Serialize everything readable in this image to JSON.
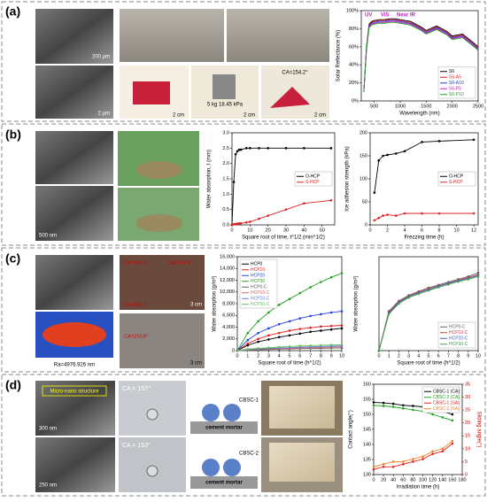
{
  "panels": [
    {
      "label": "(a)",
      "texts": [
        "200 μm",
        "2 μm",
        "2 cm",
        "2 cm",
        "2 cm",
        "5 kg 18.45 kPa",
        "CA=154.2°"
      ]
    },
    {
      "label": "(b)",
      "texts": [
        "500 nm"
      ]
    },
    {
      "label": "(c)",
      "texts": [
        "Ra=4976.926 nm",
        "3 cm",
        "3 cm",
        "CA=154.3°",
        "CA=153.8°",
        "CA=152.1°",
        "CA=151.6°"
      ]
    },
    {
      "label": "(d)",
      "texts": [
        "Micro-nano structure",
        "300 nm",
        "250 nm",
        "CA = 157°",
        "CA = 153°",
        "CBSC-1",
        "cement mortar",
        "CBSC-2",
        "cement mortar"
      ]
    }
  ],
  "chart_data": [
    {
      "type": "line",
      "xlabel": "Wavelength (nm)",
      "ylabel": "Solar Reflectance (%)",
      "annotations": [
        "UV",
        "VIS",
        "Near IR"
      ],
      "x": [
        300,
        350,
        400,
        450,
        500,
        600,
        700,
        800,
        900,
        1000,
        1200,
        1400,
        1500,
        1700,
        1900,
        2000,
        2200,
        2400,
        2500
      ],
      "xlim": [
        250,
        2500
      ],
      "xticks": [
        500,
        1000,
        1500,
        2000,
        2500
      ],
      "ylim": [
        0,
        100
      ],
      "yticks": [
        {
          "value": 0,
          "label": "0%"
        },
        {
          "value": 20,
          "label": "20%"
        },
        {
          "value": 40,
          "label": "40%"
        },
        {
          "value": 60,
          "label": "60%"
        },
        {
          "value": 80,
          "label": "80%"
        },
        {
          "value": 100,
          "label": "100%"
        }
      ],
      "markers": false,
      "legend": "lower right",
      "series": [
        {
          "name": "S6",
          "color": "#000000",
          "values": [
            10,
            60,
            85,
            88,
            89,
            90,
            90,
            91,
            91,
            90,
            88,
            82,
            78,
            83,
            77,
            72,
            74,
            65,
            60
          ]
        },
        {
          "name": "S6-A5",
          "color": "#e02020",
          "values": [
            10,
            59,
            84,
            87,
            88,
            89,
            89,
            90,
            90,
            89,
            87,
            81,
            77,
            82,
            76,
            71,
            73,
            64,
            59
          ]
        },
        {
          "name": "S6-A10",
          "color": "#2040e0",
          "values": [
            10,
            58,
            83,
            86,
            87,
            88,
            88,
            89,
            89,
            88,
            86,
            80,
            76,
            81,
            75,
            70,
            72,
            63,
            58
          ]
        },
        {
          "name": "S6-P5",
          "color": "#d020d0",
          "values": [
            10,
            57,
            82,
            85,
            86,
            87,
            87,
            88,
            88,
            87,
            85,
            79,
            75,
            80,
            74,
            69,
            71,
            62,
            57
          ]
        },
        {
          "name": "S6-P10",
          "color": "#20a020",
          "values": [
            10,
            56,
            81,
            84,
            85,
            86,
            86,
            87,
            87,
            86,
            84,
            78,
            74,
            79,
            73,
            68,
            70,
            61,
            56
          ]
        }
      ]
    },
    {
      "type": "line",
      "xlabel": "Square root of time, t^1/2 (min^1/2)",
      "ylabel": "Water absorption, I (mm)",
      "xlim": [
        0,
        57
      ],
      "xticks": [
        0,
        10,
        20,
        30,
        40,
        50
      ],
      "ylim": [
        0,
        3
      ],
      "yticks": [
        {
          "value": 0,
          "label": "0.0"
        },
        0.5,
        {
          "value": 1,
          "label": "1.0"
        },
        1.5,
        {
          "value": 2,
          "label": "2.0"
        },
        2.5,
        {
          "value": 3,
          "label": "3.0"
        }
      ],
      "markers": true,
      "legend": "center right",
      "series": [
        {
          "name": "O-HCP",
          "color": "#000000",
          "x": [
            0,
            1,
            2,
            3,
            4,
            5,
            8,
            10,
            15,
            20,
            30,
            40,
            55
          ],
          "values": [
            0,
            1.4,
            2.3,
            2.4,
            2.45,
            2.45,
            2.5,
            2.5,
            2.5,
            2.5,
            2.5,
            2.5,
            2.5
          ]
        },
        {
          "name": "S-HCP",
          "color": "#e02020",
          "x": [
            0,
            1,
            2,
            3,
            4,
            5,
            8,
            10,
            15,
            20,
            30,
            40,
            55
          ],
          "values": [
            0,
            0.02,
            0.03,
            0.04,
            0.05,
            0.05,
            0.08,
            0.1,
            0.2,
            0.3,
            0.5,
            0.7,
            0.8
          ]
        }
      ]
    },
    {
      "type": "line",
      "xlabel": "Frezzing time (h)",
      "ylabel": "Ice adhesion strength (kPa)",
      "xlim": [
        0,
        12.5
      ],
      "xticks": [
        0,
        2,
        4,
        6,
        8,
        10,
        12
      ],
      "ylim": [
        0,
        200
      ],
      "yticks": [
        0,
        50,
        100,
        150,
        200
      ],
      "markers": true,
      "legend": "center right",
      "series": [
        {
          "name": "O-HCP",
          "color": "#000000",
          "x": [
            0.5,
            1,
            1.5,
            2,
            3,
            4,
            6,
            8,
            12
          ],
          "values": [
            70,
            140,
            150,
            152,
            155,
            160,
            180,
            182,
            185
          ]
        },
        {
          "name": "S-HCP",
          "color": "#e02020",
          "x": [
            0.5,
            1,
            1.5,
            2,
            3,
            4,
            6,
            8,
            12
          ],
          "values": [
            10,
            15,
            20,
            22,
            20,
            25,
            25,
            25,
            25
          ]
        }
      ]
    },
    {
      "type": "line",
      "xlabel": "Square root of time (h^1/2)",
      "ylabel": "Water absorption (g/m²)",
      "x": [
        0,
        1,
        2,
        3,
        4,
        5,
        6,
        7,
        8,
        9,
        10
      ],
      "xlim": [
        0,
        10
      ],
      "xticks": [
        0,
        1,
        2,
        3,
        4,
        5,
        6,
        7,
        8,
        9,
        10
      ],
      "ylim": [
        0,
        16000
      ],
      "yticks": [
        0,
        {
          "value": 2000,
          "label": "2,000"
        },
        {
          "value": 4000,
          "label": "4,000"
        },
        {
          "value": 6000,
          "label": "6,000"
        },
        {
          "value": 8000,
          "label": "8,000"
        },
        {
          "value": 10000,
          "label": "10,000"
        },
        {
          "value": 12000,
          "label": "12,000"
        },
        {
          "value": 14000,
          "label": "14,000"
        },
        {
          "value": 16000,
          "label": "16,000"
        }
      ],
      "markers": true,
      "legend": "upper left",
      "series": [
        {
          "name": "HCP0",
          "color": "#000000",
          "values": [
            0,
            900,
            1500,
            1900,
            2300,
            2600,
            2900,
            3200,
            3400,
            3600,
            3800
          ]
        },
        {
          "name": "HCP10",
          "color": "#e02020",
          "values": [
            0,
            1200,
            2000,
            2600,
            3000,
            3400,
            3700,
            3900,
            4100,
            4200,
            4300
          ]
        },
        {
          "name": "HCP20",
          "color": "#2040e0",
          "values": [
            0,
            1800,
            3000,
            3800,
            4500,
            5000,
            5500,
            5900,
            6200,
            6500,
            6700
          ]
        },
        {
          "name": "HCP30",
          "color": "#20a020",
          "values": [
            0,
            3000,
            5000,
            6500,
            7800,
            8800,
            9800,
            10800,
            11700,
            12500,
            13200
          ]
        },
        {
          "name": "HCP0-C",
          "color": "#606060",
          "values": [
            0,
            100,
            150,
            200,
            250,
            300,
            350,
            380,
            400,
            420,
            450
          ]
        },
        {
          "name": "HCP10-C",
          "color": "#d06060",
          "values": [
            0,
            150,
            250,
            300,
            350,
            400,
            450,
            500,
            550,
            600,
            650
          ]
        },
        {
          "name": "HCP20-C",
          "color": "#6080e0",
          "values": [
            0,
            200,
            300,
            400,
            450,
            500,
            600,
            650,
            700,
            750,
            800
          ]
        },
        {
          "name": "HCP30-C",
          "color": "#60c060",
          "values": [
            0,
            250,
            400,
            500,
            600,
            700,
            800,
            850,
            900,
            950,
            1000
          ]
        }
      ]
    },
    {
      "type": "line",
      "xlabel": "Square root of time (h^1/2)",
      "ylabel": "Water absorption (g/m²)",
      "x": [
        0,
        1,
        2,
        3,
        4,
        5,
        6,
        7,
        8,
        9,
        10
      ],
      "xlim": [
        0,
        10
      ],
      "xticks": [
        0,
        1,
        2,
        3,
        4,
        5,
        6,
        7,
        8,
        9,
        10
      ],
      "ylim": [
        0,
        1000
      ],
      "markers": true,
      "legend": "lower right",
      "series": [
        {
          "name": "HCP0-C",
          "color": "#606060",
          "values": [
            0,
            420,
            530,
            590,
            630,
            670,
            700,
            730,
            760,
            790,
            830
          ]
        },
        {
          "name": "HCP10-C",
          "color": "#d04040",
          "values": [
            0,
            410,
            520,
            580,
            625,
            660,
            690,
            720,
            750,
            780,
            810
          ]
        },
        {
          "name": "HCP20-C",
          "color": "#4060d0",
          "values": [
            0,
            400,
            510,
            575,
            615,
            650,
            685,
            715,
            745,
            770,
            800
          ]
        },
        {
          "name": "HCP30-C",
          "color": "#40a040",
          "values": [
            0,
            390,
            500,
            565,
            605,
            640,
            675,
            705,
            735,
            760,
            790
          ]
        }
      ]
    },
    {
      "type": "line",
      "xlabel": "Irradiation time (h)",
      "ylabel": "Contact angle(°)",
      "y2label": "Sliding angle(°)",
      "x": [
        0,
        20,
        40,
        60,
        80,
        100,
        120,
        140,
        160
      ],
      "xlim": [
        0,
        180
      ],
      "xticks": [
        0,
        20,
        40,
        60,
        80,
        100,
        120,
        140,
        160,
        180
      ],
      "ylim": [
        130,
        160
      ],
      "yticks": [
        130,
        135,
        140,
        145,
        150,
        155,
        160
      ],
      "y2lim": [
        0,
        35
      ],
      "y2ticks": [
        0,
        5,
        10,
        15,
        20,
        25,
        30,
        35
      ],
      "markers": true,
      "legend": "upper right",
      "series": [
        {
          "name": "CBSC-1 (CA)",
          "color": "#000000",
          "values": [
            154,
            153.8,
            153.5,
            153,
            152.8,
            152.5,
            152,
            151,
            150
          ]
        },
        {
          "name": "CBSC-2 (CA)",
          "color": "#20a020",
          "values": [
            153,
            152.8,
            152.5,
            152,
            151.5,
            151,
            150,
            149,
            148
          ]
        },
        {
          "name": "CBSC-1 (SA)",
          "color": "#e02020",
          "axis": "y2",
          "values": [
            2,
            3,
            3,
            4,
            5,
            6,
            8,
            9,
            12
          ]
        },
        {
          "name": "CBSC-2 (SA)",
          "color": "#f08020",
          "axis": "y2",
          "values": [
            3,
            4,
            5,
            5,
            6,
            7,
            9,
            10,
            13
          ]
        }
      ]
    }
  ]
}
